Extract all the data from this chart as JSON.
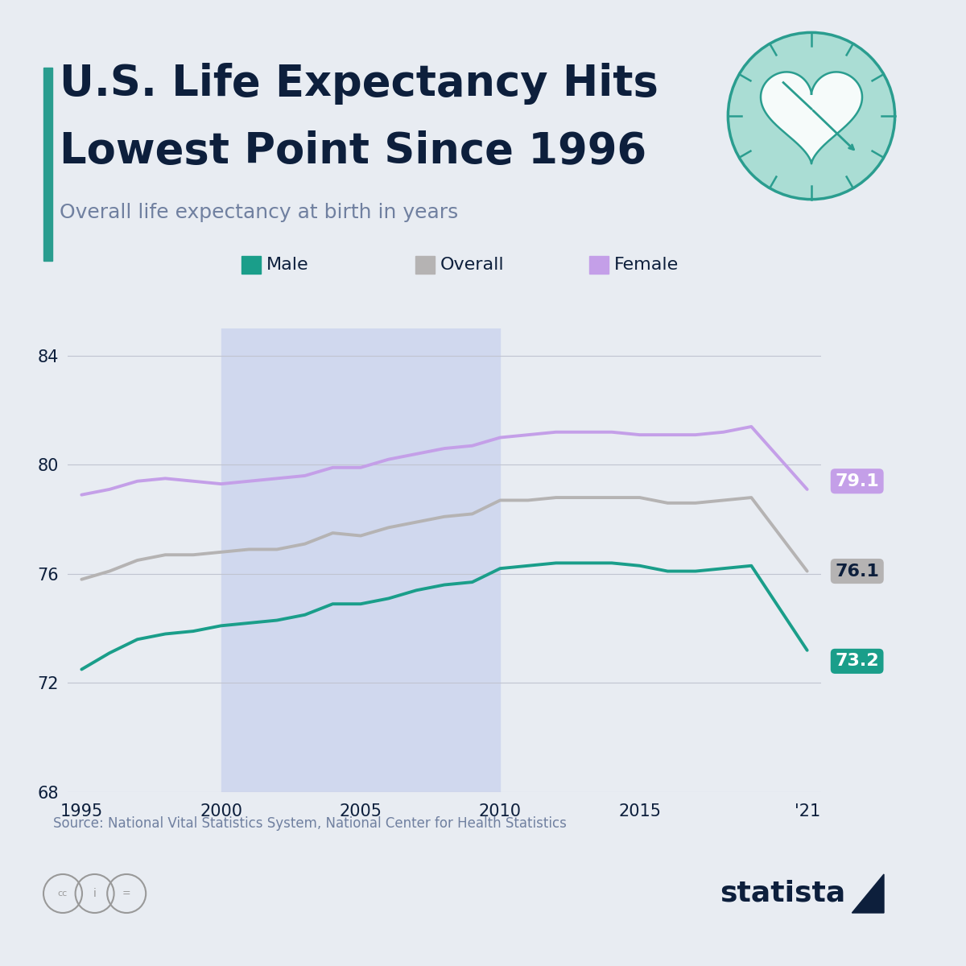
{
  "title_line1": "U.S. Life Expectancy Hits",
  "title_line2": "Lowest Point Since 1996",
  "subtitle": "Overall life expectancy at birth in years",
  "source": "Source: National Vital Statistics System, National Center for Health Statistics",
  "bg_color": "#e8ecf2",
  "plot_bg_color": "#e8ecf2",
  "title_color": "#0d1f3c",
  "subtitle_color": "#7080a0",
  "accent_bar_color": "#2a9d8f",
  "male_color": "#1a9e8a",
  "overall_color": "#b5b3b3",
  "female_color": "#c49fe8",
  "shade_color": "#d0d8ee",
  "years": [
    1995,
    1996,
    1997,
    1998,
    1999,
    2000,
    2001,
    2002,
    2003,
    2004,
    2005,
    2006,
    2007,
    2008,
    2009,
    2010,
    2011,
    2012,
    2013,
    2014,
    2015,
    2016,
    2017,
    2018,
    2019,
    2021
  ],
  "male": [
    72.5,
    73.1,
    73.6,
    73.8,
    73.9,
    74.1,
    74.2,
    74.3,
    74.5,
    74.9,
    74.9,
    75.1,
    75.4,
    75.6,
    75.7,
    76.2,
    76.3,
    76.4,
    76.4,
    76.4,
    76.3,
    76.1,
    76.1,
    76.2,
    76.3,
    73.2
  ],
  "overall": [
    75.8,
    76.1,
    76.5,
    76.7,
    76.7,
    76.8,
    76.9,
    76.9,
    77.1,
    77.5,
    77.4,
    77.7,
    77.9,
    78.1,
    78.2,
    78.7,
    78.7,
    78.8,
    78.8,
    78.8,
    78.8,
    78.6,
    78.6,
    78.7,
    78.8,
    76.1
  ],
  "female": [
    78.9,
    79.1,
    79.4,
    79.5,
    79.4,
    79.3,
    79.4,
    79.5,
    79.6,
    79.9,
    79.9,
    80.2,
    80.4,
    80.6,
    80.7,
    81.0,
    81.1,
    81.2,
    81.2,
    81.2,
    81.1,
    81.1,
    81.1,
    81.2,
    81.4,
    79.1
  ],
  "shade_regions": [
    [
      2000,
      2010
    ]
  ],
  "ylim": [
    68,
    85
  ],
  "yticks": [
    68,
    72,
    76,
    80,
    84
  ],
  "end_labels": [
    {
      "value": "79.1",
      "color": "#c49fe8",
      "text_color": "#ffffff"
    },
    {
      "value": "76.1",
      "color": "#b5b3b3",
      "text_color": "#0d1f3c"
    },
    {
      "value": "73.2",
      "color": "#1a9e8a",
      "text_color": "#ffffff"
    }
  ],
  "legend_items": [
    {
      "label": "Male",
      "color": "#1a9e8a"
    },
    {
      "label": "Overall",
      "color": "#b5b3b3"
    },
    {
      "label": "Female",
      "color": "#c49fe8"
    }
  ]
}
